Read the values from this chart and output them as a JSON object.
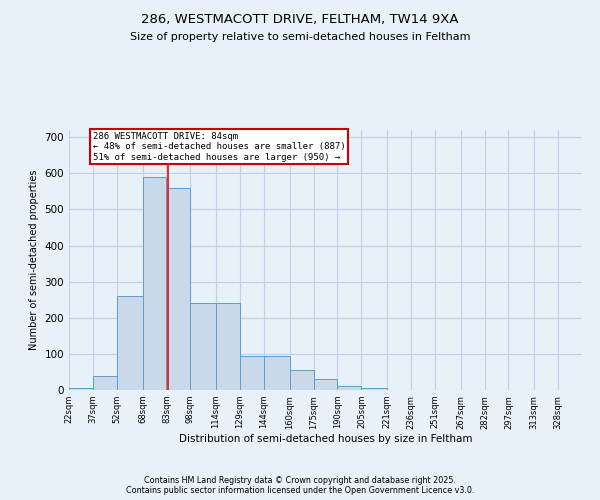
{
  "title1": "286, WESTMACOTT DRIVE, FELTHAM, TW14 9XA",
  "title2": "Size of property relative to semi-detached houses in Feltham",
  "xlabel": "Distribution of semi-detached houses by size in Feltham",
  "ylabel": "Number of semi-detached properties",
  "bin_labels": [
    "22sqm",
    "37sqm",
    "52sqm",
    "68sqm",
    "83sqm",
    "98sqm",
    "114sqm",
    "129sqm",
    "144sqm",
    "160sqm",
    "175sqm",
    "190sqm",
    "205sqm",
    "221sqm",
    "236sqm",
    "251sqm",
    "267sqm",
    "282sqm",
    "297sqm",
    "313sqm",
    "328sqm"
  ],
  "bin_edges": [
    22,
    37,
    52,
    68,
    83,
    98,
    114,
    129,
    144,
    160,
    175,
    190,
    205,
    221,
    236,
    251,
    267,
    282,
    297,
    313,
    328,
    343
  ],
  "bar_heights": [
    5,
    40,
    260,
    590,
    560,
    240,
    240,
    95,
    95,
    55,
    30,
    10,
    5,
    0,
    0,
    0,
    0,
    0,
    0,
    0,
    0
  ],
  "bar_color": "#c9d9ea",
  "bar_edge_color": "#5a9fd4",
  "grid_color": "#c0d0e8",
  "background_color": "#e8f0f8",
  "red_line_x": 84,
  "annotation_title": "286 WESTMACOTT DRIVE: 84sqm",
  "annotation_line1": "← 48% of semi-detached houses are smaller (887)",
  "annotation_line2": "51% of semi-detached houses are larger (950) →",
  "annotation_box_color": "#ffffff",
  "annotation_box_edge": "#cc0000",
  "footer1": "Contains HM Land Registry data © Crown copyright and database right 2025.",
  "footer2": "Contains public sector information licensed under the Open Government Licence v3.0.",
  "ylim": [
    0,
    720
  ],
  "yticks": [
    0,
    100,
    200,
    300,
    400,
    500,
    600,
    700
  ]
}
